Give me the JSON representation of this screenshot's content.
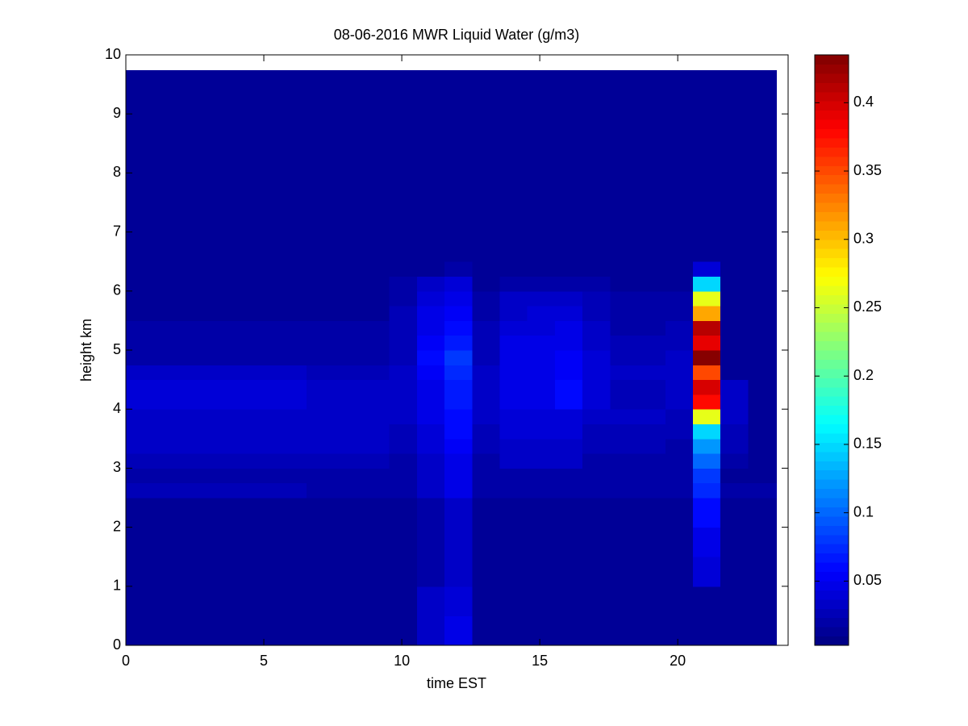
{
  "chart_data": {
    "type": "heatmap",
    "title": "08-06-2016 MWR Liquid Water (g/m3)",
    "xlabel": "time EST",
    "ylabel": "height km",
    "xlim": [
      0,
      24
    ],
    "xticks": [
      0,
      5,
      10,
      15,
      20
    ],
    "ylim": [
      0,
      10
    ],
    "yticks": [
      0,
      1,
      2,
      3,
      4,
      5,
      6,
      7,
      8,
      9,
      10
    ],
    "colormap": "jet",
    "clim": [
      0.003,
      0.435
    ],
    "colorbar_ticks": [
      0.05,
      0.1,
      0.15,
      0.2,
      0.25,
      0.3,
      0.35,
      0.4
    ],
    "xbins": [
      0,
      0.55,
      1.55,
      2.55,
      3.55,
      4.55,
      5.55,
      6.55,
      7.55,
      8.55,
      9.55,
      10.55,
      11.55,
      12.55,
      13.55,
      14.55,
      15.55,
      16.55,
      17.55,
      18.55,
      19.55,
      20.55,
      21.55,
      22.55,
      23.57
    ],
    "ybins": [
      0,
      0.25,
      0.5,
      0.75,
      1,
      1.25,
      1.5,
      1.75,
      2,
      2.25,
      2.5,
      2.75,
      3,
      3.25,
      3.5,
      3.75,
      4,
      4.25,
      4.5,
      4.75,
      5,
      5.25,
      5.5,
      5.75,
      6,
      6.25,
      6.5,
      9.74
    ],
    "z": [
      [
        0.012,
        0.012,
        0.012,
        0.012,
        0.012,
        0.012,
        0.012,
        0.012,
        0.012,
        0.012,
        0.012,
        0.035,
        0.045,
        0.012,
        0.012,
        0.012,
        0.012,
        0.012,
        0.012,
        0.012,
        0.012,
        0.012,
        0.012,
        0.012
      ],
      [
        0.012,
        0.012,
        0.012,
        0.012,
        0.012,
        0.012,
        0.012,
        0.012,
        0.012,
        0.012,
        0.012,
        0.035,
        0.045,
        0.012,
        0.012,
        0.012,
        0.012,
        0.012,
        0.012,
        0.012,
        0.012,
        0.012,
        0.012,
        0.012
      ],
      [
        0.012,
        0.012,
        0.012,
        0.012,
        0.012,
        0.012,
        0.012,
        0.012,
        0.012,
        0.012,
        0.012,
        0.03,
        0.04,
        0.012,
        0.012,
        0.012,
        0.012,
        0.012,
        0.012,
        0.012,
        0.012,
        0.012,
        0.012,
        0.012
      ],
      [
        0.012,
        0.012,
        0.012,
        0.012,
        0.012,
        0.012,
        0.012,
        0.012,
        0.012,
        0.012,
        0.012,
        0.03,
        0.04,
        0.012,
        0.012,
        0.012,
        0.012,
        0.012,
        0.012,
        0.012,
        0.012,
        0.012,
        0.012,
        0.012
      ],
      [
        0.012,
        0.012,
        0.012,
        0.012,
        0.012,
        0.012,
        0.012,
        0.012,
        0.012,
        0.012,
        0.012,
        0.02,
        0.035,
        0.012,
        0.012,
        0.012,
        0.012,
        0.012,
        0.012,
        0.012,
        0.015,
        0.04,
        0.012,
        0.012
      ],
      [
        0.012,
        0.012,
        0.012,
        0.012,
        0.012,
        0.012,
        0.012,
        0.012,
        0.012,
        0.012,
        0.012,
        0.02,
        0.035,
        0.012,
        0.012,
        0.012,
        0.012,
        0.012,
        0.012,
        0.012,
        0.015,
        0.04,
        0.012,
        0.012
      ],
      [
        0.012,
        0.012,
        0.012,
        0.012,
        0.012,
        0.012,
        0.012,
        0.012,
        0.012,
        0.012,
        0.012,
        0.02,
        0.035,
        0.012,
        0.012,
        0.012,
        0.012,
        0.012,
        0.012,
        0.012,
        0.015,
        0.045,
        0.012,
        0.012
      ],
      [
        0.012,
        0.012,
        0.012,
        0.012,
        0.012,
        0.012,
        0.012,
        0.012,
        0.012,
        0.012,
        0.012,
        0.02,
        0.035,
        0.012,
        0.012,
        0.012,
        0.012,
        0.012,
        0.012,
        0.012,
        0.015,
        0.045,
        0.012,
        0.012
      ],
      [
        0.012,
        0.012,
        0.012,
        0.012,
        0.012,
        0.012,
        0.012,
        0.012,
        0.012,
        0.012,
        0.012,
        0.02,
        0.035,
        0.012,
        0.012,
        0.012,
        0.012,
        0.012,
        0.012,
        0.012,
        0.015,
        0.06,
        0.012,
        0.012
      ],
      [
        0.012,
        0.012,
        0.012,
        0.012,
        0.012,
        0.012,
        0.012,
        0.012,
        0.012,
        0.012,
        0.012,
        0.02,
        0.035,
        0.012,
        0.012,
        0.012,
        0.012,
        0.012,
        0.012,
        0.012,
        0.015,
        0.06,
        0.012,
        0.012
      ],
      [
        0.025,
        0.025,
        0.025,
        0.025,
        0.025,
        0.025,
        0.025,
        0.018,
        0.018,
        0.018,
        0.018,
        0.03,
        0.045,
        0.02,
        0.02,
        0.02,
        0.02,
        0.02,
        0.02,
        0.02,
        0.02,
        0.075,
        0.02,
        0.02
      ],
      [
        0.022,
        0.022,
        0.022,
        0.022,
        0.022,
        0.022,
        0.022,
        0.022,
        0.022,
        0.022,
        0.018,
        0.03,
        0.05,
        0.018,
        0.018,
        0.018,
        0.018,
        0.018,
        0.018,
        0.018,
        0.018,
        0.08,
        0.015,
        0.015
      ],
      [
        0.028,
        0.028,
        0.028,
        0.028,
        0.028,
        0.028,
        0.028,
        0.028,
        0.028,
        0.028,
        0.02,
        0.035,
        0.05,
        0.02,
        0.03,
        0.03,
        0.03,
        0.02,
        0.02,
        0.02,
        0.02,
        0.1,
        0.02,
        0.015
      ],
      [
        0.032,
        0.032,
        0.032,
        0.032,
        0.032,
        0.032,
        0.032,
        0.032,
        0.032,
        0.032,
        0.025,
        0.04,
        0.055,
        0.025,
        0.035,
        0.035,
        0.035,
        0.025,
        0.025,
        0.025,
        0.02,
        0.12,
        0.025,
        0.015
      ],
      [
        0.035,
        0.035,
        0.035,
        0.035,
        0.035,
        0.035,
        0.035,
        0.035,
        0.035,
        0.035,
        0.028,
        0.042,
        0.058,
        0.028,
        0.038,
        0.038,
        0.038,
        0.028,
        0.028,
        0.028,
        0.025,
        0.145,
        0.028,
        0.015
      ],
      [
        0.036,
        0.036,
        0.036,
        0.036,
        0.036,
        0.036,
        0.036,
        0.036,
        0.036,
        0.036,
        0.03,
        0.045,
        0.06,
        0.03,
        0.04,
        0.04,
        0.04,
        0.03,
        0.03,
        0.03,
        0.028,
        0.26,
        0.03,
        0.015
      ],
      [
        0.042,
        0.042,
        0.042,
        0.042,
        0.042,
        0.042,
        0.042,
        0.03,
        0.03,
        0.03,
        0.03,
        0.05,
        0.068,
        0.03,
        0.045,
        0.05,
        0.058,
        0.04,
        0.028,
        0.028,
        0.03,
        0.38,
        0.03,
        0.012
      ],
      [
        0.042,
        0.042,
        0.042,
        0.042,
        0.042,
        0.042,
        0.042,
        0.03,
        0.03,
        0.03,
        0.03,
        0.05,
        0.068,
        0.03,
        0.045,
        0.05,
        0.06,
        0.04,
        0.028,
        0.028,
        0.03,
        0.4,
        0.03,
        0.012
      ],
      [
        0.035,
        0.035,
        0.035,
        0.035,
        0.035,
        0.035,
        0.035,
        0.028,
        0.028,
        0.028,
        0.03,
        0.055,
        0.075,
        0.03,
        0.048,
        0.05,
        0.055,
        0.04,
        0.03,
        0.03,
        0.03,
        0.35,
        0.015,
        0.012
      ],
      [
        0.022,
        0.022,
        0.022,
        0.022,
        0.022,
        0.022,
        0.022,
        0.022,
        0.022,
        0.022,
        0.028,
        0.058,
        0.08,
        0.028,
        0.048,
        0.048,
        0.052,
        0.038,
        0.028,
        0.028,
        0.03,
        0.43,
        0.012,
        0.012
      ],
      [
        0.02,
        0.02,
        0.02,
        0.02,
        0.02,
        0.02,
        0.02,
        0.02,
        0.02,
        0.02,
        0.028,
        0.055,
        0.07,
        0.028,
        0.045,
        0.045,
        0.05,
        0.035,
        0.025,
        0.025,
        0.028,
        0.39,
        0.012,
        0.012
      ],
      [
        0.02,
        0.02,
        0.02,
        0.02,
        0.02,
        0.02,
        0.02,
        0.02,
        0.02,
        0.02,
        0.026,
        0.05,
        0.062,
        0.025,
        0.04,
        0.042,
        0.045,
        0.03,
        0.022,
        0.022,
        0.025,
        0.41,
        0.012,
        0.012
      ],
      [
        0.012,
        0.012,
        0.012,
        0.012,
        0.012,
        0.012,
        0.012,
        0.012,
        0.012,
        0.012,
        0.024,
        0.045,
        0.055,
        0.022,
        0.035,
        0.038,
        0.04,
        0.028,
        0.02,
        0.02,
        0.022,
        0.31,
        0.012,
        0.012
      ],
      [
        0.012,
        0.012,
        0.012,
        0.012,
        0.012,
        0.012,
        0.012,
        0.012,
        0.012,
        0.012,
        0.022,
        0.04,
        0.05,
        0.02,
        0.03,
        0.033,
        0.035,
        0.025,
        0.018,
        0.018,
        0.02,
        0.26,
        0.012,
        0.012
      ],
      [
        0.012,
        0.012,
        0.012,
        0.012,
        0.012,
        0.012,
        0.012,
        0.012,
        0.012,
        0.012,
        0.018,
        0.03,
        0.04,
        0.016,
        0.022,
        0.022,
        0.022,
        0.018,
        0.012,
        0.012,
        0.012,
        0.15,
        0.012,
        0.012
      ],
      [
        0.012,
        0.012,
        0.012,
        0.012,
        0.012,
        0.012,
        0.012,
        0.012,
        0.012,
        0.012,
        0.012,
        0.016,
        0.018,
        0.012,
        0.012,
        0.012,
        0.012,
        0.012,
        0.012,
        0.012,
        0.012,
        0.04,
        0.012,
        0.012
      ],
      [
        0.012,
        0.012,
        0.012,
        0.012,
        0.012,
        0.012,
        0.012,
        0.012,
        0.012,
        0.012,
        0.012,
        0.012,
        0.012,
        0.012,
        0.012,
        0.012,
        0.012,
        0.012,
        0.012,
        0.012,
        0.012,
        0.012,
        0.012,
        0.012
      ]
    ]
  }
}
